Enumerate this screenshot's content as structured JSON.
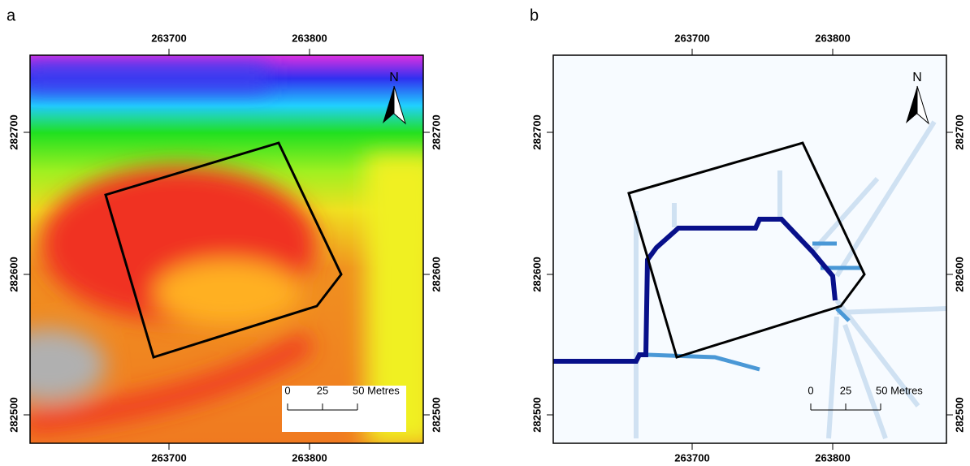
{
  "panels": [
    {
      "label": "a",
      "x_ticks": [
        "263700",
        "263800"
      ],
      "y_ticks": [
        "282700",
        "282600",
        "282500"
      ],
      "north": "N",
      "scale_bar": {
        "ticks": [
          "0",
          "25"
        ],
        "end": "50 Metres"
      }
    },
    {
      "label": "b",
      "x_ticks": [
        "263700",
        "263800"
      ],
      "y_ticks": [
        "282700",
        "282600",
        "282500"
      ],
      "north": "N",
      "scale_bar": {
        "ticks": [
          "0",
          "25"
        ],
        "end": "50 Metres"
      }
    }
  ]
}
